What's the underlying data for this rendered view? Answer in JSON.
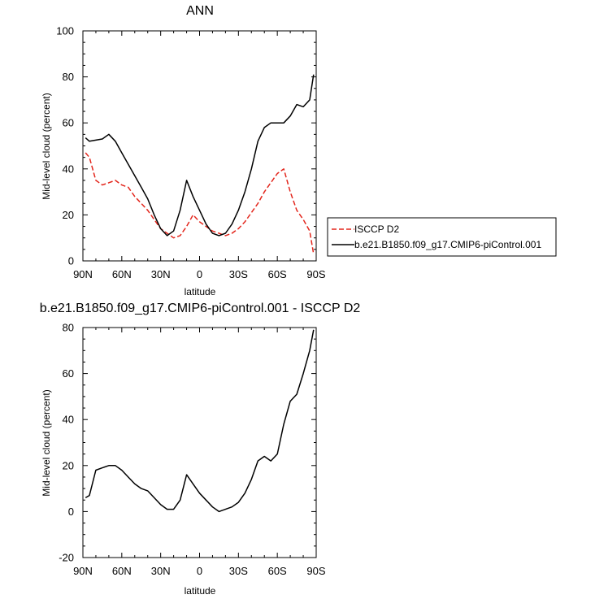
{
  "chart_data": [
    {
      "type": "line",
      "title": "ANN",
      "xlabel": "latitude",
      "ylabel": "Mid-level cloud (percent)",
      "xlim": [
        90,
        -90
      ],
      "ylim": [
        0,
        100
      ],
      "x_ticks": [
        90,
        60,
        30,
        0,
        -30,
        -60,
        -90
      ],
      "x_tick_labels": [
        "90N",
        "60N",
        "30N",
        "0",
        "30S",
        "60S",
        "90S"
      ],
      "y_ticks": [
        0,
        20,
        40,
        60,
        80,
        100
      ],
      "y_tick_labels": [
        "0",
        "20",
        "40",
        "60",
        "80",
        "100"
      ],
      "legend_position": "right",
      "series": [
        {
          "name": "ISCCP D2",
          "color": "#e3261c",
          "dash": "dashed",
          "x": [
            88,
            85,
            80,
            75,
            70,
            65,
            60,
            55,
            50,
            45,
            40,
            35,
            30,
            25,
            20,
            15,
            10,
            5,
            0,
            -5,
            -10,
            -15,
            -20,
            -25,
            -30,
            -35,
            -40,
            -45,
            -50,
            -55,
            -60,
            -65,
            -70,
            -75,
            -80,
            -85,
            -88
          ],
          "y": [
            47,
            45,
            35,
            33,
            34,
            35,
            33,
            32,
            28,
            25,
            22,
            18,
            14,
            12,
            10,
            11,
            15,
            20,
            17,
            15,
            13,
            12,
            11,
            12,
            14,
            17,
            21,
            25,
            30,
            34,
            38,
            40,
            30,
            22,
            18,
            13,
            3
          ]
        },
        {
          "name": "b.e21.B1850.f09_g17.CMIP6-piControl.001",
          "color": "#000000",
          "dash": "solid",
          "x": [
            88,
            85,
            80,
            75,
            70,
            65,
            60,
            55,
            50,
            45,
            40,
            35,
            30,
            25,
            20,
            15,
            10,
            5,
            0,
            -5,
            -10,
            -15,
            -20,
            -25,
            -30,
            -35,
            -40,
            -45,
            -50,
            -55,
            -60,
            -65,
            -70,
            -75,
            -80,
            -85,
            -88
          ],
          "y": [
            53.5,
            52,
            52.5,
            53,
            55,
            52,
            47,
            42,
            37,
            32,
            27,
            20,
            14,
            11,
            13,
            22,
            35,
            28,
            22,
            16,
            12,
            11,
            12,
            16,
            22,
            30,
            40,
            52,
            58,
            60,
            60,
            60,
            63,
            68,
            67,
            70,
            81
          ]
        }
      ]
    },
    {
      "type": "line",
      "title": "b.e21.B1850.f09_g17.CMIP6-piControl.001 - ISCCP D2",
      "xlabel": "latitude",
      "ylabel": "Mid-level cloud (percent)",
      "xlim": [
        90,
        -90
      ],
      "ylim": [
        -20,
        80
      ],
      "x_ticks": [
        90,
        60,
        30,
        0,
        -30,
        -60,
        -90
      ],
      "x_tick_labels": [
        "90N",
        "60N",
        "30N",
        "0",
        "30S",
        "60S",
        "90S"
      ],
      "y_ticks": [
        -20,
        0,
        20,
        40,
        60,
        80
      ],
      "y_tick_labels": [
        "-20",
        "0",
        "20",
        "40",
        "60",
        "80"
      ],
      "series": [
        {
          "color": "#000000",
          "dash": "solid",
          "x": [
            88,
            85,
            80,
            75,
            70,
            65,
            60,
            55,
            50,
            45,
            40,
            35,
            30,
            25,
            20,
            15,
            10,
            5,
            0,
            -5,
            -10,
            -15,
            -20,
            -25,
            -30,
            -35,
            -40,
            -45,
            -50,
            -55,
            -60,
            -65,
            -70,
            -75,
            -80,
            -85,
            -88
          ],
          "y": [
            6,
            7,
            18,
            19,
            20,
            20,
            18,
            15,
            12,
            10,
            9,
            6,
            3,
            1,
            1,
            5,
            16,
            12,
            8,
            5,
            2,
            0,
            1,
            2,
            4,
            8,
            14,
            22,
            24,
            22,
            25,
            38,
            48,
            51,
            60,
            70,
            79
          ]
        }
      ]
    }
  ]
}
